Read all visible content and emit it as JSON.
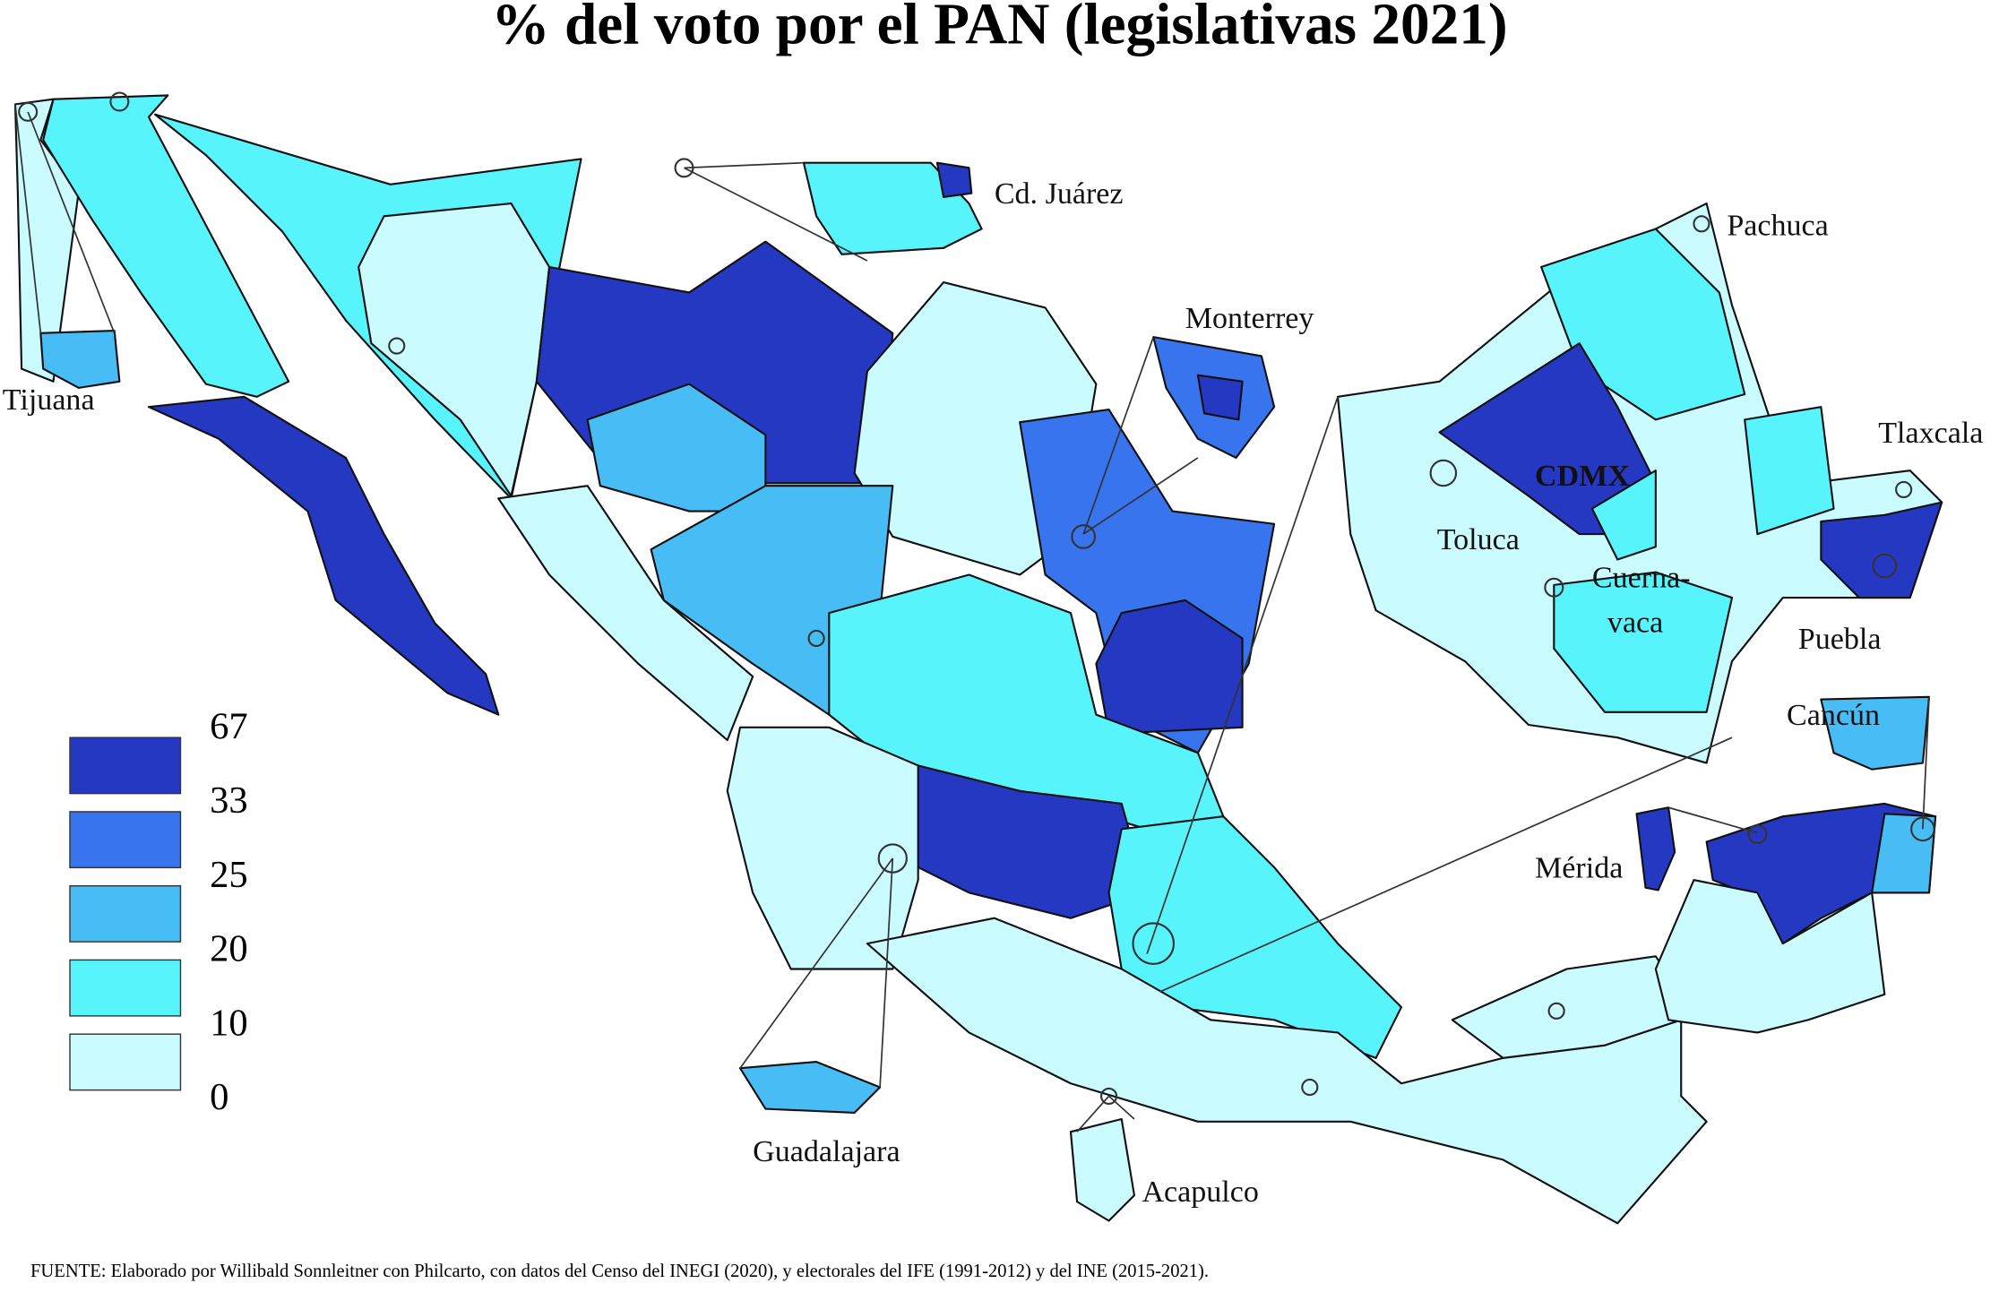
{
  "header": {
    "title": "% del voto por el PAN (legislativas 2021)"
  },
  "legend": {
    "breaks": [
      67,
      33,
      25,
      20,
      10,
      0
    ],
    "colors": [
      "#2538c2",
      "#3874ee",
      "#48bdf5",
      "#58f4fc",
      "#c9fbff"
    ]
  },
  "places": [
    "Cd. Juárez",
    "Monterrey",
    "Pachuca",
    "Tlaxcala",
    "Tijuana",
    "CDMX",
    "Toluca",
    "Cuerna-",
    "vaca",
    "Puebla",
    "Cancún",
    "Mérida",
    "Guadalajara",
    "Acapulco"
  ],
  "source": "FUENTE: Elaborado por Willibald Sonnleitner con Philcarto, con datos del Censo del INEGI (2020), y electorales del IFE (1991-2012) y del INE (2015-2021)."
}
